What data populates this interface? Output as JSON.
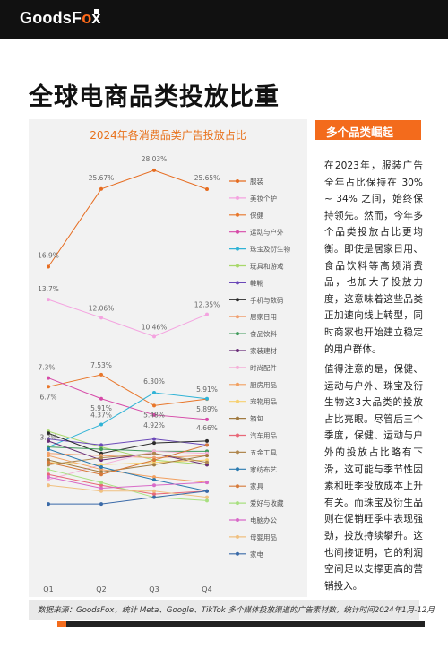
{
  "brand": {
    "logo_text": "GoodsF",
    "logo_accent": "o",
    "logo_end": "x"
  },
  "page_title": "全球电商品类投放比重",
  "side": {
    "heading": "多个品类崛起",
    "para1": "在2023年，服装广告全年占比保持在 30% ~ 34% 之间，始终保持领先。然而，今年多个品类投放占比更均衡。即使是居家日用、食品饮料等高频消费品，也加大了投放力度，这意味着这些品类正加速向线上转型，同时商家也开始建立稳定的用户群体。",
    "para2": "值得注意的是，保健、运动与户外、珠宝及衍生物这3大品类的投放占比亮眼。尽管后三个季度，保健、运动与户外的投放占比略有下滑，这可能与季节性因素和旺季投放成本上升有关。而珠宝及衍生品则在促销旺季中表现强劲，投放持续攀升。这也间接证明，它的利润空间足以支撑更高的营销投入。"
  },
  "source": "数据来源：GoodsFox，统计 Meta、Google、TikTok 多个媒体投放渠道的广告素材数，统计时间2024年1月-12月",
  "chart_data": {
    "type": "line",
    "title": "2024年各消费品类广告投放占比",
    "categories": [
      "Q1",
      "Q2",
      "Q3",
      "Q4"
    ],
    "ylim": [
      0,
      30
    ],
    "series": [
      {
        "name": "服装",
        "color": "#e66c20",
        "values": [
          16.9,
          25.67,
          28.03,
          25.65
        ],
        "labels": [
          "16.9%",
          "25.67%",
          "28.03%",
          "25.65%"
        ]
      },
      {
        "name": "美妆个护",
        "color": "#f4a3e0",
        "values": [
          13.7,
          12.06,
          10.46,
          12.35
        ],
        "labels": [
          "13.7%",
          "12.06%",
          "10.46%",
          "12.35%"
        ]
      },
      {
        "name": "保健",
        "color": "#e8762a",
        "values": [
          6.7,
          7.53,
          5.48,
          5.89
        ],
        "labels": [
          "6.7%",
          "7.53%",
          "5.48%",
          "5.89%"
        ]
      },
      {
        "name": "运动与户外",
        "color": "#d64aa8",
        "values": [
          7.3,
          5.91,
          4.92,
          4.66
        ],
        "labels": [
          "7.3%",
          "5.91%",
          "4.92%",
          "4.66%"
        ]
      },
      {
        "name": "珠宝及衍生物",
        "color": "#30b3d6",
        "values": [
          3.2,
          4.37,
          6.3,
          5.91
        ],
        "labels": [
          "3.2%",
          "4.37%",
          "6.30%",
          "5.91%"
        ]
      },
      {
        "name": "玩具和游戏",
        "color": "#a8d86a",
        "values": [
          4.0,
          3.2,
          2.6,
          2.4
        ]
      },
      {
        "name": "鞋靴",
        "color": "#6a48b8",
        "values": [
          3.6,
          3.3,
          3.6,
          3.3
        ]
      },
      {
        "name": "手机与数码",
        "color": "#2b2b2b",
        "values": [
          3.9,
          2.9,
          3.4,
          3.5
        ]
      },
      {
        "name": "居家日用",
        "color": "#f0a070",
        "values": [
          2.9,
          2.8,
          2.7,
          2.8
        ]
      },
      {
        "name": "食品饮料",
        "color": "#3f9a5a",
        "values": [
          3.2,
          3.1,
          3.0,
          3.0
        ]
      },
      {
        "name": "家装建材",
        "color": "#6a2d78",
        "values": [
          3.5,
          2.6,
          2.9,
          2.4
        ]
      },
      {
        "name": "时尚配件",
        "color": "#f4b0d8",
        "values": [
          1.8,
          2.4,
          3.0,
          2.9
        ]
      },
      {
        "name": "厨房用品",
        "color": "#f2a060",
        "values": [
          2.8,
          2.2,
          1.9,
          1.7
        ]
      },
      {
        "name": "宠物用品",
        "color": "#f6d070",
        "values": [
          2.5,
          2.4,
          2.5,
          2.6
        ]
      },
      {
        "name": "箱包",
        "color": "#a07a40",
        "values": [
          2.6,
          2.1,
          2.4,
          2.8
        ]
      },
      {
        "name": "汽车用品",
        "color": "#e86878",
        "values": [
          2.0,
          1.6,
          1.3,
          1.4
        ]
      },
      {
        "name": "五金工具",
        "color": "#b08850",
        "values": [
          2.4,
          2.7,
          2.9,
          2.5
        ]
      },
      {
        "name": "家纺布艺",
        "color": "#2a7ab0",
        "values": [
          3.1,
          2.3,
          1.8,
          1.4
        ]
      },
      {
        "name": "家具",
        "color": "#d67a3a",
        "values": [
          2.5,
          2.0,
          2.6,
          3.3
        ]
      },
      {
        "name": "爱好与收藏",
        "color": "#a8e080",
        "values": [
          2.2,
          1.7,
          1.2,
          1.1
        ]
      },
      {
        "name": "电脑办公",
        "color": "#d86ac8",
        "values": [
          1.9,
          1.5,
          1.6,
          1.7
        ]
      },
      {
        "name": "母婴用品",
        "color": "#f0c080",
        "values": [
          1.6,
          1.4,
          1.4,
          1.2
        ]
      },
      {
        "name": "家电",
        "color": "#3a6aa8",
        "values": [
          1.0,
          1.0,
          1.2,
          1.4
        ]
      }
    ]
  }
}
